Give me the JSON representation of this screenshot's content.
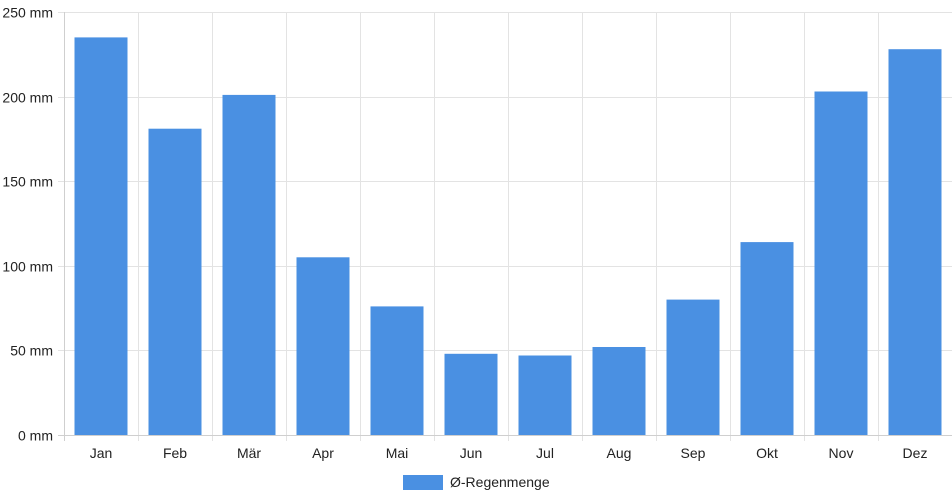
{
  "chart_data": {
    "type": "bar",
    "categories": [
      "Jan",
      "Feb",
      "Mär",
      "Apr",
      "Mai",
      "Jun",
      "Jul",
      "Aug",
      "Sep",
      "Okt",
      "Nov",
      "Dez"
    ],
    "series": [
      {
        "name": "Ø-Regenmenge",
        "values": [
          235,
          181,
          201,
          105,
          76,
          48,
          47,
          52,
          80,
          114,
          203,
          228
        ],
        "color": "#4a90e2"
      }
    ],
    "unit": "mm",
    "ylim": [
      0,
      250
    ],
    "yticks": [
      0,
      50,
      100,
      150,
      200,
      250
    ],
    "ytick_labels": [
      "0 mm",
      "50 mm",
      "100 mm",
      "150 mm",
      "200 mm",
      "250 mm"
    ],
    "grid": true,
    "legend_position": "bottom-center"
  }
}
